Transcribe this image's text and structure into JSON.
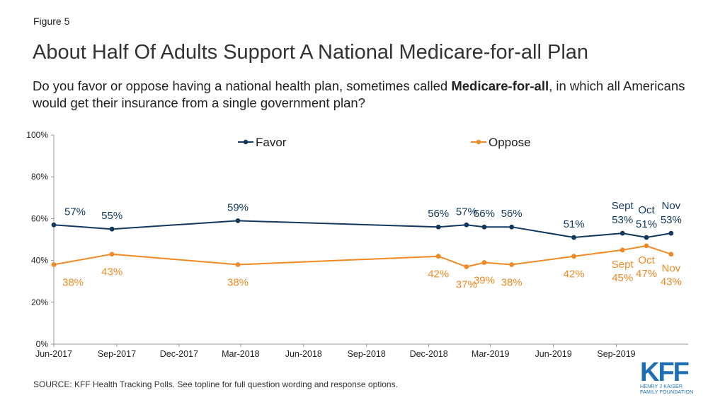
{
  "header": {
    "figure_label": "Figure 5",
    "title": "About Half Of Adults Support A National Medicare-for-all Plan",
    "subtitle_before": "Do you favor or oppose having a national health plan, sometimes called ",
    "subtitle_bold": "Medicare-for-all",
    "subtitle_after": ", in which all Americans would get their insurance from a single government plan?"
  },
  "footer": {
    "source": "SOURCE: KFF Health Tracking Polls. See topline for full question wording and response options."
  },
  "logo": {
    "mark": "KFF",
    "line1": "HENRY J KAISER",
    "line2": "FAMILY FOUNDATION"
  },
  "colors": {
    "favor": "#12385e",
    "oppose": "#f08a24",
    "axis": "#999999",
    "text": "#222222"
  },
  "chart_data": {
    "type": "line",
    "title": "",
    "xlabel": "",
    "ylabel": "",
    "ylim": [
      0,
      100
    ],
    "yticks": [
      0,
      20,
      40,
      60,
      80,
      100
    ],
    "ytick_labels": [
      "0%",
      "20%",
      "40%",
      "60%",
      "80%",
      "100%"
    ],
    "xlim": [
      "2017-06-01",
      "2019-12-15"
    ],
    "xticks": [
      "2017-06-01",
      "2017-09-01",
      "2017-12-01",
      "2018-03-01",
      "2018-06-01",
      "2018-09-01",
      "2018-12-01",
      "2019-03-01",
      "2019-06-01",
      "2019-09-01"
    ],
    "xtick_labels": [
      "Jun-2017",
      "Sep-2017",
      "Dec-2017",
      "Mar-2018",
      "Jun-2018",
      "Sep-2018",
      "Dec-2018",
      "Mar-2019",
      "Jun-2019",
      "Sep-2019"
    ],
    "grid": false,
    "legend": "top",
    "series": [
      {
        "name": "Favor",
        "color": "#12385e",
        "points": [
          {
            "x": "2017-06-01",
            "y": 57,
            "label": "57%"
          },
          {
            "x": "2017-08-25",
            "y": 55,
            "label": "55%"
          },
          {
            "x": "2018-02-25",
            "y": 59,
            "label": "59%"
          },
          {
            "x": "2018-12-15",
            "y": 56,
            "label": "56%"
          },
          {
            "x": "2019-01-25",
            "y": 57,
            "label": "57%"
          },
          {
            "x": "2019-02-20",
            "y": 56,
            "label": "56%"
          },
          {
            "x": "2019-04-01",
            "y": 56,
            "label": "56%"
          },
          {
            "x": "2019-07-01",
            "y": 51,
            "label": "51%"
          },
          {
            "x": "2019-09-10",
            "y": 53,
            "label": "53%",
            "month": "Sept"
          },
          {
            "x": "2019-10-15",
            "y": 51,
            "label": "51%",
            "month": "Oct"
          },
          {
            "x": "2019-11-20",
            "y": 53,
            "label": "53%",
            "month": "Nov"
          }
        ]
      },
      {
        "name": "Oppose",
        "color": "#f08a24",
        "points": [
          {
            "x": "2017-06-01",
            "y": 38,
            "label": "38%"
          },
          {
            "x": "2017-08-25",
            "y": 43,
            "label": "43%"
          },
          {
            "x": "2018-02-25",
            "y": 38,
            "label": "38%"
          },
          {
            "x": "2018-12-15",
            "y": 42,
            "label": "42%"
          },
          {
            "x": "2019-01-25",
            "y": 37,
            "label": "37%"
          },
          {
            "x": "2019-02-20",
            "y": 39,
            "label": "39%"
          },
          {
            "x": "2019-04-01",
            "y": 38,
            "label": "38%"
          },
          {
            "x": "2019-07-01",
            "y": 42,
            "label": "42%"
          },
          {
            "x": "2019-09-10",
            "y": 45,
            "label": "45%",
            "month": "Sept"
          },
          {
            "x": "2019-10-15",
            "y": 47,
            "label": "47%",
            "month": "Oct"
          },
          {
            "x": "2019-11-20",
            "y": 43,
            "label": "43%",
            "month": "Nov"
          }
        ]
      }
    ]
  }
}
